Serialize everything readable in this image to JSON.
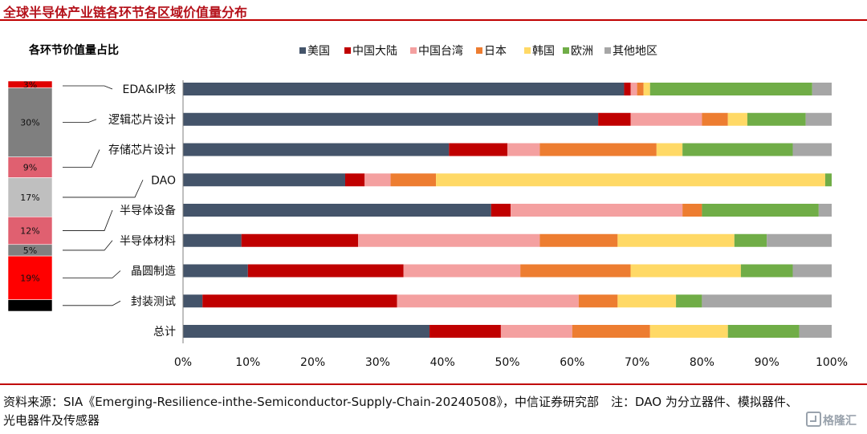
{
  "title": "全球半导体产业链各环节各区域价值量分布",
  "source": "资料来源：SIA《Emerging-Resilience-inthe-Semiconductor-Supply-Chain-20240508》，中信证券研究部　注：DAO 为分立器件、模拟器件、光电器件及传感器",
  "watermark": "格隆汇",
  "chart_data": [
    {
      "type": "bar",
      "orientation": "horizontal",
      "stacked": true,
      "categories": [
        "EDA&IP核",
        "逻辑芯片设计",
        "存储芯片设计",
        "DAO",
        "半导体设备",
        "半导体材料",
        "晶圆制造",
        "封装测试",
        "总计"
      ],
      "series": [
        {
          "name": "美国",
          "color": "#44546a",
          "values": [
            68,
            64,
            41,
            25,
            47.5,
            9,
            10,
            3,
            38
          ]
        },
        {
          "name": "中国大陆",
          "color": "#c00000",
          "values": [
            1,
            5,
            9,
            3,
            3,
            18,
            24,
            30,
            11
          ]
        },
        {
          "name": "中国台湾",
          "color": "#f4a0a0",
          "values": [
            1,
            11,
            5,
            4,
            26.5,
            28,
            18,
            28,
            11
          ]
        },
        {
          "name": "日本",
          "color": "#ed7d31",
          "values": [
            1,
            4,
            18,
            7,
            3,
            12,
            17,
            6,
            12
          ]
        },
        {
          "name": "韩国",
          "color": "#ffd966",
          "values": [
            1,
            3,
            4,
            60,
            0,
            18,
            17,
            9,
            12
          ]
        },
        {
          "name": "欧洲",
          "color": "#70ad47",
          "values": [
            25,
            9,
            17,
            1,
            18,
            5,
            8,
            4,
            11
          ]
        },
        {
          "name": "其他地区",
          "color": "#a6a6a6",
          "values": [
            3,
            4,
            6,
            0,
            2,
            10,
            6,
            20,
            5
          ]
        }
      ],
      "xlim": [
        0,
        100
      ],
      "xticks": [
        "0%",
        "10%",
        "20%",
        "30%",
        "40%",
        "50%",
        "60%",
        "70%",
        "80%",
        "90%",
        "100%"
      ],
      "legend_position": "top",
      "grid": false
    },
    {
      "type": "bar",
      "orientation": "vertical",
      "stacked": true,
      "title": "各环节价值量占比",
      "segments": [
        {
          "label": "3%",
          "value": 3,
          "color": "#e00000",
          "links_to": "EDA&IP核"
        },
        {
          "label": "30%",
          "value": 30,
          "color": "#7f7f7f",
          "links_to": "逻辑芯片设计"
        },
        {
          "label": "9%",
          "value": 9,
          "color": "#e06070",
          "links_to": "存储芯片设计"
        },
        {
          "label": "17%",
          "value": 17,
          "color": "#bfbfbf",
          "links_to": "DAO"
        },
        {
          "label": "12%",
          "value": 12,
          "color": "#e06070",
          "links_to": "半导体设备"
        },
        {
          "label": "5%",
          "value": 5,
          "color": "#808080",
          "links_to": "半导体材料"
        },
        {
          "label": "19%",
          "value": 19,
          "color": "#ff0000",
          "links_to": "晶圆制造"
        },
        {
          "label": "",
          "value": 5,
          "color": "#000000",
          "links_to": "封装测试"
        }
      ]
    }
  ]
}
